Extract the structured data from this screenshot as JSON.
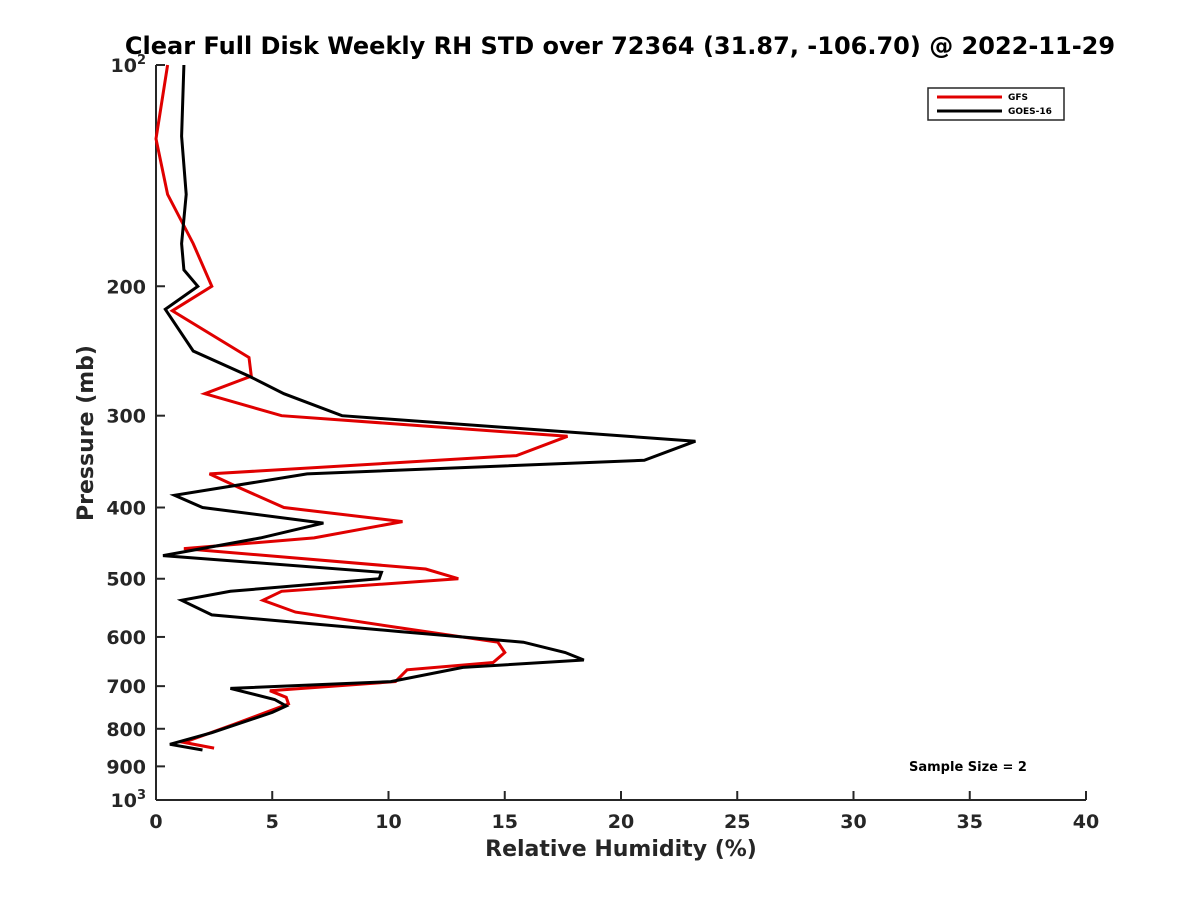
{
  "chart_data": {
    "type": "line",
    "title": "Clear Full Disk Weekly RH STD over 72364 (31.87, -106.70) @ 2022-11-29",
    "xlabel": "Relative Humidity (%)",
    "ylabel": "Pressure (mb)",
    "xlim": [
      0,
      40
    ],
    "ylim": [
      100,
      1000
    ],
    "yscale": "log",
    "y_reversed": true,
    "x_ticks": [
      "0",
      "5",
      "10",
      "15",
      "20",
      "25",
      "30",
      "35",
      "40"
    ],
    "y_ticks": [
      {
        "value": 100,
        "base": "10",
        "exp": "2"
      },
      {
        "value": 200,
        "label": "200"
      },
      {
        "value": 300,
        "label": "300"
      },
      {
        "value": 400,
        "label": "400"
      },
      {
        "value": 500,
        "label": "500"
      },
      {
        "value": 600,
        "label": "600"
      },
      {
        "value": 700,
        "label": "700"
      },
      {
        "value": 800,
        "label": "800"
      },
      {
        "value": 900,
        "label": "900"
      },
      {
        "value": 1000,
        "base": "10",
        "exp": "3"
      }
    ],
    "legend": {
      "position": "top-right"
    },
    "annotation": "Sample Size = 2",
    "series": [
      {
        "name": "GFS",
        "color": "#e00000",
        "points": [
          [
            0.5,
            100
          ],
          [
            0.0,
            126
          ],
          [
            0.5,
            150
          ],
          [
            1.6,
            175
          ],
          [
            2.4,
            200
          ],
          [
            0.7,
            216
          ],
          [
            4.0,
            250
          ],
          [
            4.1,
            265
          ],
          [
            2.1,
            280
          ],
          [
            5.4,
            300
          ],
          [
            17.7,
            320
          ],
          [
            15.5,
            340
          ],
          [
            2.3,
            360
          ],
          [
            3.5,
            375
          ],
          [
            5.5,
            400
          ],
          [
            10.6,
            418
          ],
          [
            6.8,
            440
          ],
          [
            1.2,
            455
          ],
          [
            11.6,
            485
          ],
          [
            13.0,
            500
          ],
          [
            5.4,
            520
          ],
          [
            4.6,
            535
          ],
          [
            6.0,
            555
          ],
          [
            10.8,
            585
          ],
          [
            14.7,
            610
          ],
          [
            15.0,
            630
          ],
          [
            14.5,
            650
          ],
          [
            10.8,
            665
          ],
          [
            10.3,
            690
          ],
          [
            4.9,
            710
          ],
          [
            5.6,
            725
          ],
          [
            5.7,
            740
          ],
          [
            3.3,
            790
          ],
          [
            1.2,
            835
          ],
          [
            2.5,
            850
          ]
        ]
      },
      {
        "name": "GOES-16",
        "color": "#000000",
        "points": [
          [
            1.2,
            100
          ],
          [
            1.1,
            125
          ],
          [
            1.3,
            150
          ],
          [
            1.1,
            175
          ],
          [
            1.2,
            190
          ],
          [
            1.8,
            200
          ],
          [
            0.4,
            215
          ],
          [
            1.6,
            245
          ],
          [
            4.0,
            265
          ],
          [
            5.5,
            280
          ],
          [
            8.0,
            300
          ],
          [
            23.2,
            325
          ],
          [
            21.0,
            345
          ],
          [
            6.5,
            360
          ],
          [
            0.8,
            385
          ],
          [
            2.0,
            400
          ],
          [
            7.2,
            420
          ],
          [
            4.5,
            440
          ],
          [
            0.3,
            465
          ],
          [
            9.7,
            490
          ],
          [
            9.6,
            500
          ],
          [
            3.2,
            520
          ],
          [
            1.1,
            535
          ],
          [
            2.4,
            560
          ],
          [
            10.5,
            590
          ],
          [
            15.8,
            610
          ],
          [
            17.6,
            630
          ],
          [
            18.4,
            645
          ],
          [
            13.2,
            660
          ],
          [
            10.1,
            690
          ],
          [
            3.2,
            705
          ],
          [
            5.1,
            730
          ],
          [
            5.6,
            745
          ],
          [
            5.0,
            760
          ],
          [
            2.4,
            810
          ],
          [
            0.6,
            840
          ],
          [
            2.0,
            855
          ]
        ]
      }
    ]
  }
}
